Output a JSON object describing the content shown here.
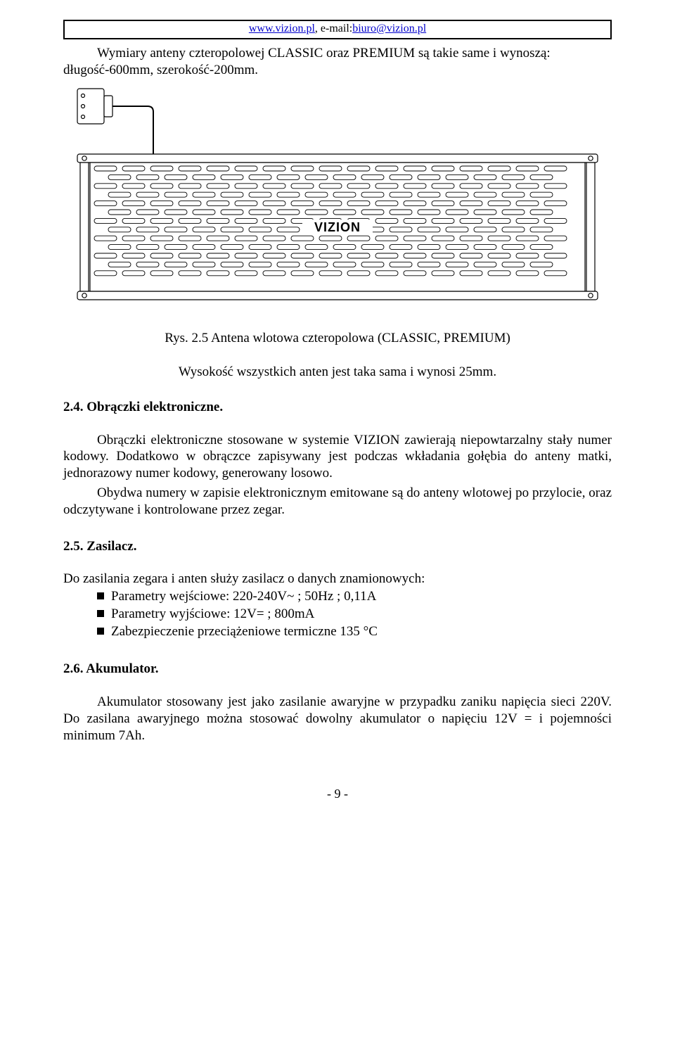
{
  "header": {
    "url": "www.vizion.pl",
    "sep": ",  ",
    "email_label": "e-mail:",
    "email": "biuro@vizion.pl"
  },
  "intro": "Wymiary anteny czteropolowej CLASSIC oraz PREMIUM są takie same i wynoszą: długość-600mm, szerokość-200mm.",
  "figure": {
    "caption": "Rys. 2.5 Antena wlotowa czteropolowa (CLASSIC, PREMIUM)",
    "sub_caption": "Wysokość wszystkich anten jest taka sama i wynosi 25mm.",
    "logo_text": "VIZION",
    "colors": {
      "stroke": "#000000",
      "fill": "#ffffff"
    }
  },
  "sec24": {
    "title": "2.4. Obrączki elektroniczne.",
    "p1": "Obrączki elektroniczne stosowane w systemie VIZION zawierają niepowtarzalny stały numer kodowy. Dodatkowo w obrączce zapisywany jest podczas wkładania gołębia do anteny matki, jednorazowy numer kodowy, generowany losowo.",
    "p2": "Obydwa numery w zapisie elektronicznym emitowane są do anteny wlotowej po przylocie, oraz odczytywane i kontrolowane przez zegar."
  },
  "sec25": {
    "title": "2.5. Zasilacz.",
    "intro": "Do zasilania zegara i anten służy zasilacz o danych znamionowych:",
    "items": [
      "Parametry wejściowe: 220-240V~ ; 50Hz ; 0,11A",
      "Parametry wyjściowe: 12V= ; 800mA",
      "Zabezpieczenie przeciążeniowe termiczne 135 °C"
    ]
  },
  "sec26": {
    "title": "2.6. Akumulator.",
    "p1": "Akumulator stosowany jest jako zasilanie awaryjne w przypadku zaniku napięcia sieci 220V. Do zasilana awaryjnego można stosować dowolny akumulator o napięciu 12V = i pojemności minimum 7Ah."
  },
  "page_number": "- 9 -"
}
